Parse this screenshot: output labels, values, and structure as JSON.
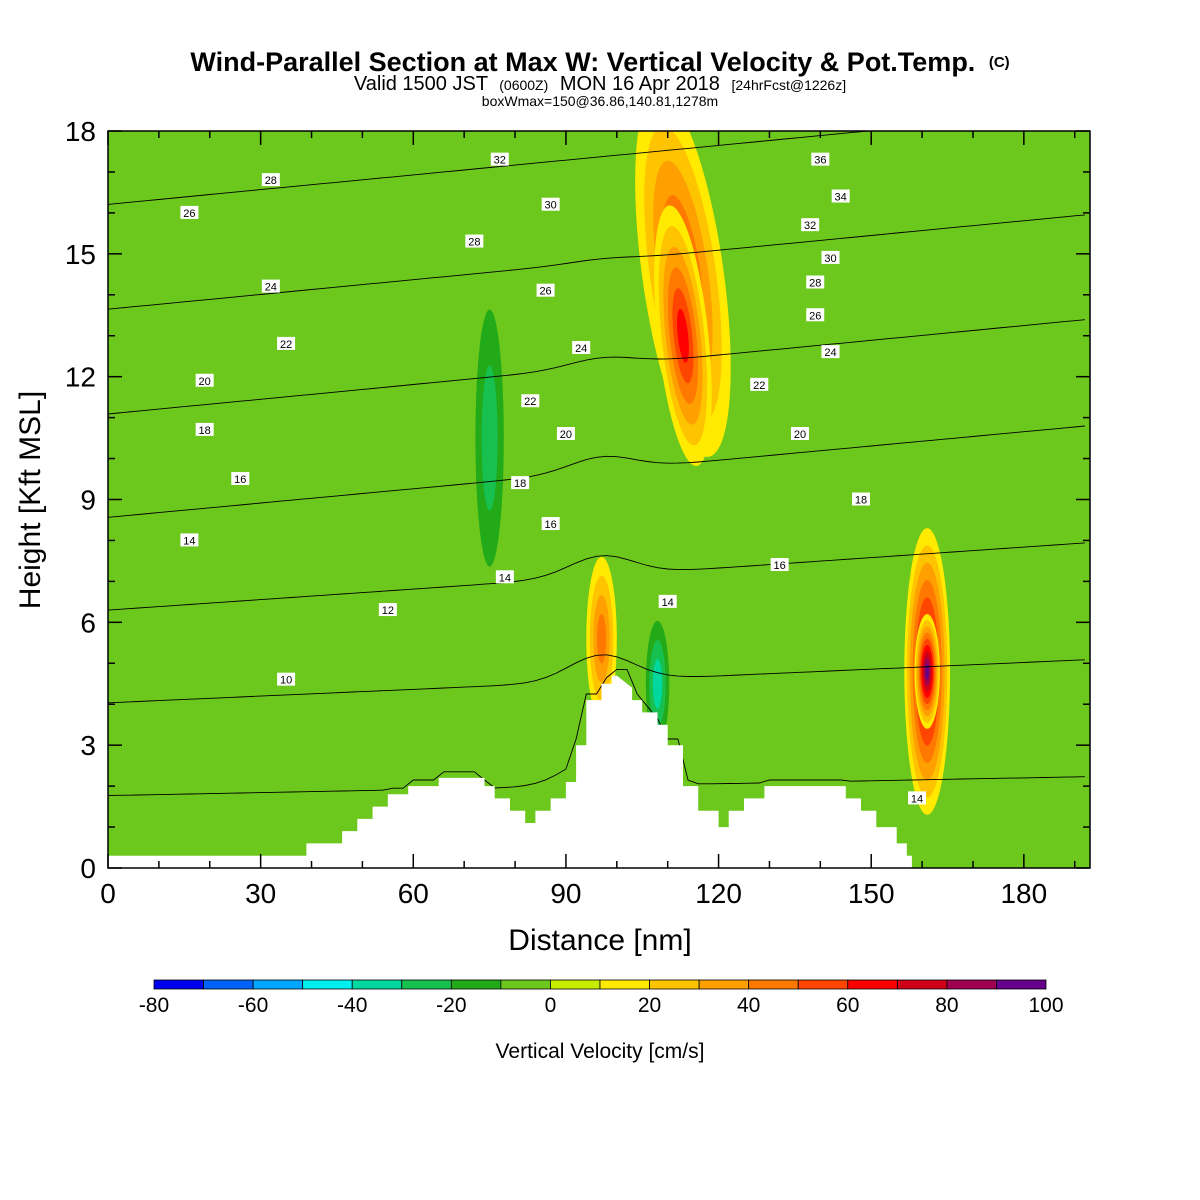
{
  "chart_data": {
    "type": "heatmap",
    "title": "Wind-Parallel Section at Max W: Vertical Velocity & Pot.Temp.",
    "title_suffix": "(C)",
    "subtitle_main": "Valid 1500 JST",
    "subtitle_utc": "(0600Z)",
    "subtitle_date": "MON 16 Apr 2018",
    "subtitle_fcst": "[24hrFcst@1226z]",
    "subtitle2": "boxWmax=150@36.86,140.81,1278m",
    "xlabel": "Distance [nm]",
    "ylabel": "Height [Kft MSL]",
    "xlim": [
      0,
      193
    ],
    "ylim": [
      0,
      18
    ],
    "xticks": [
      0,
      30,
      60,
      90,
      120,
      150,
      180
    ],
    "yticks": [
      0,
      3,
      6,
      9,
      12,
      15,
      18
    ],
    "colorbar": {
      "label": "Vertical Velocity [cm/s]",
      "levels": [
        -80,
        -70,
        -60,
        -50,
        -40,
        -30,
        -20,
        -10,
        0,
        10,
        20,
        30,
        40,
        50,
        60,
        70,
        80,
        90,
        100
      ],
      "tick_labels": [
        "-80",
        "-60",
        "-40",
        "-20",
        "0",
        "20",
        "40",
        "60",
        "80",
        "100"
      ],
      "colors": [
        "#0000f0",
        "#0062f6",
        "#00a6ff",
        "#00f0f0",
        "#00d8a0",
        "#18c050",
        "#22aa18",
        "#6cc81c",
        "#c8ec00",
        "#ffea00",
        "#ffc400",
        "#ffa000",
        "#ff7800",
        "#ff4600",
        "#ff0000",
        "#d00018",
        "#a00050",
        "#64008c"
      ]
    },
    "background_color": "#6cc81c",
    "terrain": [
      [
        0,
        0.3
      ],
      [
        10,
        0.3
      ],
      [
        20,
        0.3
      ],
      [
        30,
        0.3
      ],
      [
        39,
        0.3
      ],
      [
        39,
        0.6
      ],
      [
        46,
        0.6
      ],
      [
        46,
        0.9
      ],
      [
        49,
        0.9
      ],
      [
        49,
        1.2
      ],
      [
        52,
        1.2
      ],
      [
        52,
        1.5
      ],
      [
        55,
        1.5
      ],
      [
        55,
        1.8
      ],
      [
        59,
        1.8
      ],
      [
        59,
        2.0
      ],
      [
        65,
        2.0
      ],
      [
        65,
        2.2
      ],
      [
        74,
        2.2
      ],
      [
        74,
        2.0
      ],
      [
        76,
        2.0
      ],
      [
        76,
        1.7
      ],
      [
        79,
        1.7
      ],
      [
        79,
        1.4
      ],
      [
        82,
        1.4
      ],
      [
        82,
        1.1
      ],
      [
        84,
        1.1
      ],
      [
        84,
        1.4
      ],
      [
        87,
        1.4
      ],
      [
        87,
        1.7
      ],
      [
        90,
        1.7
      ],
      [
        90,
        2.1
      ],
      [
        92,
        2.1
      ],
      [
        92,
        3.0
      ],
      [
        94,
        3.0
      ],
      [
        94,
        4.1
      ],
      [
        97,
        4.1
      ],
      [
        97,
        4.5
      ],
      [
        99,
        4.5
      ],
      [
        99,
        4.7
      ],
      [
        100,
        4.7
      ],
      [
        103,
        4.4
      ],
      [
        103,
        4.1
      ],
      [
        105,
        4.1
      ],
      [
        105,
        3.8
      ],
      [
        108,
        3.8
      ],
      [
        108,
        3.5
      ],
      [
        110,
        3.5
      ],
      [
        110,
        3.0
      ],
      [
        113,
        3.0
      ],
      [
        113,
        2.0
      ],
      [
        116,
        2.0
      ],
      [
        116,
        1.4
      ],
      [
        120,
        1.4
      ],
      [
        120,
        1.0
      ],
      [
        122,
        1.0
      ],
      [
        122,
        1.4
      ],
      [
        125,
        1.4
      ],
      [
        125,
        1.7
      ],
      [
        129,
        1.7
      ],
      [
        129,
        2.0
      ],
      [
        145,
        2.0
      ],
      [
        145,
        1.7
      ],
      [
        148,
        1.7
      ],
      [
        148,
        1.4
      ],
      [
        151,
        1.4
      ],
      [
        151,
        1.0
      ],
      [
        155,
        1.0
      ],
      [
        155,
        0.6
      ],
      [
        157,
        0.6
      ],
      [
        157,
        0.3
      ],
      [
        158,
        0.3
      ],
      [
        158,
        0.0
      ],
      [
        193,
        0.0
      ]
    ],
    "w_features": [
      {
        "x": 113,
        "y": 14.5,
        "rx": 8,
        "ry": 4.5,
        "value": 55,
        "rot": -8
      },
      {
        "x": 113,
        "y": 13.0,
        "rx": 5,
        "ry": 3.2,
        "value": 65,
        "rot": -6
      },
      {
        "x": 161,
        "y": 4.8,
        "rx": 4.5,
        "ry": 3.5,
        "value": 85
      },
      {
        "x": 161,
        "y": 4.8,
        "rx": 2.5,
        "ry": 1.4,
        "value": 98
      },
      {
        "x": 97,
        "y": 5.6,
        "rx": 3,
        "ry": 2.0,
        "value": 45
      },
      {
        "x": 75,
        "y": 10.5,
        "rx": 4,
        "ry": 4.5,
        "value": -30
      },
      {
        "x": 108,
        "y": 4.5,
        "rx": 3,
        "ry": 2.0,
        "value": -40
      }
    ],
    "contour_levels": [
      8,
      10,
      12,
      14,
      16,
      18,
      20,
      22,
      24,
      26,
      28,
      30,
      32,
      34,
      36
    ],
    "contour_labels": [
      {
        "text": "32",
        "x": 77,
        "y": 17.3
      },
      {
        "text": "36",
        "x": 140,
        "y": 17.3
      },
      {
        "text": "28",
        "x": 32,
        "y": 16.8
      },
      {
        "text": "34",
        "x": 144,
        "y": 16.4
      },
      {
        "text": "26",
        "x": 16,
        "y": 16.0
      },
      {
        "text": "30",
        "x": 87,
        "y": 16.2
      },
      {
        "text": "32",
        "x": 138,
        "y": 15.7
      },
      {
        "text": "28",
        "x": 72,
        "y": 15.3
      },
      {
        "text": "30",
        "x": 142,
        "y": 14.9
      },
      {
        "text": "26",
        "x": 86,
        "y": 14.1
      },
      {
        "text": "28",
        "x": 139,
        "y": 14.3
      },
      {
        "text": "24",
        "x": 32,
        "y": 14.2
      },
      {
        "text": "26",
        "x": 139,
        "y": 13.5
      },
      {
        "text": "22",
        "x": 35,
        "y": 12.8
      },
      {
        "text": "24",
        "x": 93,
        "y": 12.7
      },
      {
        "text": "24",
        "x": 142,
        "y": 12.6
      },
      {
        "text": "20",
        "x": 19,
        "y": 11.9
      },
      {
        "text": "22",
        "x": 128,
        "y": 11.8
      },
      {
        "text": "22",
        "x": 83,
        "y": 11.4
      },
      {
        "text": "18",
        "x": 19,
        "y": 10.7
      },
      {
        "text": "20",
        "x": 90,
        "y": 10.6
      },
      {
        "text": "20",
        "x": 136,
        "y": 10.6
      },
      {
        "text": "16",
        "x": 26,
        "y": 9.5
      },
      {
        "text": "18",
        "x": 81,
        "y": 9.4
      },
      {
        "text": "18",
        "x": 148,
        "y": 9.0
      },
      {
        "text": "16",
        "x": 87,
        "y": 8.4
      },
      {
        "text": "14",
        "x": 16,
        "y": 8.0
      },
      {
        "text": "16",
        "x": 132,
        "y": 7.4
      },
      {
        "text": "14",
        "x": 78,
        "y": 7.1
      },
      {
        "text": "14",
        "x": 110,
        "y": 6.5
      },
      {
        "text": "12",
        "x": 55,
        "y": 6.3
      },
      {
        "text": "10",
        "x": 35,
        "y": 4.6
      },
      {
        "text": "14",
        "x": 159,
        "y": 1.7
      }
    ]
  }
}
